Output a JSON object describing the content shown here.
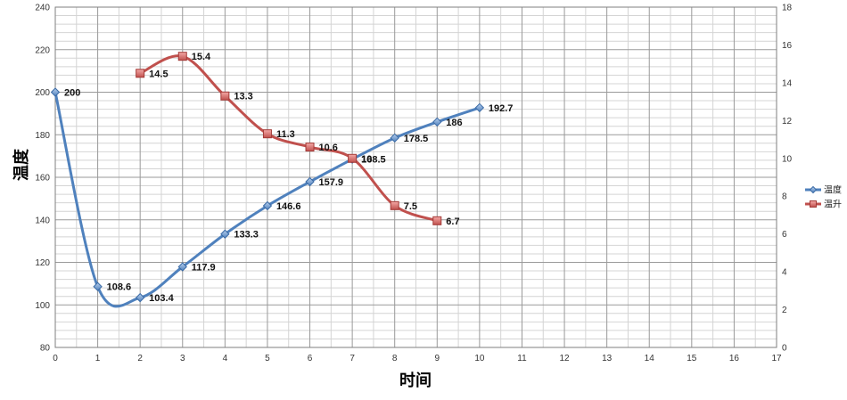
{
  "chart_data": {
    "type": "line",
    "title": "",
    "xlabel": "时间",
    "ylabel": "温度",
    "y2label": "",
    "xlim": [
      0,
      17
    ],
    "ylim": [
      80,
      240
    ],
    "y2lim": [
      0,
      18
    ],
    "x_ticks": [
      0,
      1,
      2,
      3,
      4,
      5,
      6,
      7,
      8,
      9,
      10,
      11,
      12,
      13,
      14,
      15,
      16,
      17
    ],
    "y_ticks": [
      80,
      100,
      120,
      140,
      160,
      180,
      200,
      220,
      240
    ],
    "y2_ticks": [
      0,
      2,
      4,
      6,
      8,
      10,
      12,
      14,
      16,
      18
    ],
    "grid": true,
    "legend_position": "right",
    "series": [
      {
        "name": "温度",
        "axis": "left",
        "color": "#4f81bd",
        "marker": "diamond",
        "x": [
          0,
          1,
          2,
          3,
          4,
          5,
          6,
          7,
          8,
          9,
          10
        ],
        "values": [
          200,
          108.6,
          103.4,
          117.9,
          133.3,
          146.6,
          157.9,
          168.5,
          178.5,
          186,
          192.7
        ],
        "labels": [
          "200",
          "108.6",
          "103.4",
          "117.9",
          "133.3",
          "146.6",
          "157.9",
          "168.5",
          "178.5",
          "186",
          "192.7"
        ]
      },
      {
        "name": "温升",
        "axis": "right",
        "color": "#c0504d",
        "marker": "square",
        "x": [
          2,
          3,
          4,
          5,
          6,
          7,
          8,
          9
        ],
        "values": [
          14.5,
          15.4,
          13.3,
          11.3,
          10.6,
          10,
          7.5,
          6.7
        ],
        "labels": [
          "14.5",
          "15.4",
          "13.3",
          "11.3",
          "10.6",
          "10",
          "7.5",
          "6.7"
        ]
      }
    ]
  }
}
